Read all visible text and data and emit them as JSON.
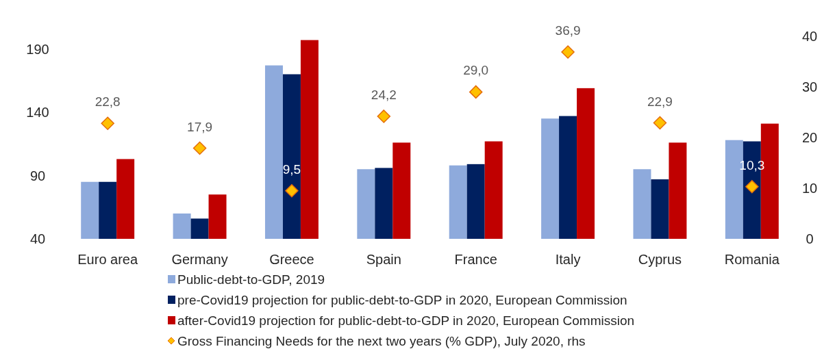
{
  "chart_data": {
    "type": "bar",
    "categories": [
      "Euro area",
      "Germany",
      "Greece",
      "Spain",
      "France",
      "Italy",
      "Cyprus",
      "Romania"
    ],
    "series": [
      {
        "name": "Public-debt-to-GDP, 2019",
        "color": "#8eaadc",
        "values": [
          85,
          60,
          177,
          95,
          98,
          135,
          95,
          118
        ]
      },
      {
        "name": "pre-Covid19 projection for public-debt-to-GDP in 2020, European Commission",
        "color": "#002060",
        "values": [
          85,
          56,
          170,
          96,
          99,
          137,
          87,
          117
        ]
      },
      {
        "name": "after-Covid19 projection for public-debt-to-GDP in 2020, European Commission",
        "color": "#c00000",
        "values": [
          103,
          75,
          197,
          116,
          117,
          159,
          116,
          131
        ]
      },
      {
        "name": "Gross Financing Needs for the next two years (% GDP), July 2020, rhs",
        "type": "scatter",
        "axis": "y2",
        "color": "#ffc000",
        "values": [
          22.8,
          17.9,
          9.5,
          24.2,
          29.0,
          36.9,
          22.9,
          10.3
        ],
        "value_labels": [
          "22,8",
          "17,9",
          "9,5",
          "24,2",
          "29,0",
          "36,9",
          "22,9",
          "10,3"
        ]
      }
    ],
    "ylim": [
      40,
      200
    ],
    "yticks": [
      40,
      90,
      140,
      190
    ],
    "y2lim": [
      0,
      40
    ],
    "y2ticks": [
      0,
      10,
      20,
      30,
      40
    ],
    "marker": "diamond",
    "legend": "bottom",
    "grid": false
  }
}
